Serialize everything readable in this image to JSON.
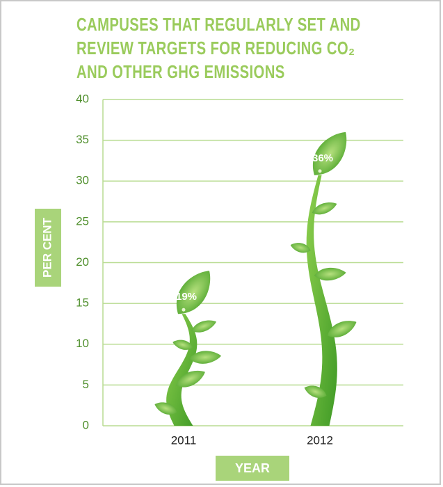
{
  "chart_data": {
    "type": "bar",
    "title": "CAMPUSES THAT REGULARLY SET AND REVIEW TARGETS FOR REDUCING CO₂ AND OTHER GHG EMISSIONS",
    "x_label": "YEAR",
    "y_label": "PER CENT",
    "categories": [
      "2011",
      "2012"
    ],
    "values": [
      19,
      36
    ],
    "value_labels": [
      "19%",
      "36%"
    ],
    "color": "#5cb531",
    "ylim": [
      0,
      40
    ],
    "yticks": [
      0,
      5,
      10,
      15,
      20,
      25,
      30,
      35,
      40
    ],
    "grid": true
  }
}
